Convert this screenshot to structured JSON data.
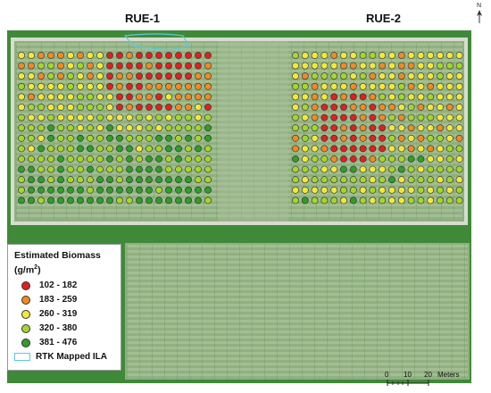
{
  "fields": [
    {
      "label": "RUE-1",
      "name": "rue-1"
    },
    {
      "label": "RUE-2",
      "name": "rue-2"
    }
  ],
  "north_arrow": {
    "label": "N"
  },
  "legend": {
    "title": "Estimated Biomass",
    "unit_base": "(g/m",
    "unit_exp": "2",
    "unit_close": ")",
    "classes": [
      {
        "range": "102 - 182",
        "color": "#e02020"
      },
      {
        "range": "183 - 259",
        "color": "#f08a24"
      },
      {
        "range": "260 - 319",
        "color": "#f2e83a"
      },
      {
        "range": "320 - 380",
        "color": "#a4d62c"
      },
      {
        "range": "381 - 476",
        "color": "#2f9e2a"
      }
    ],
    "ila_label": "RTK Mapped ILA",
    "ila_color": "#5cc8dc"
  },
  "scale_bar": {
    "ticks": [
      "0",
      "10",
      "20"
    ],
    "unit": "Meters"
  },
  "colors": {
    "grass": "#3f8a38",
    "plot": "#8fb07f",
    "border": "#d8dcd0"
  }
}
